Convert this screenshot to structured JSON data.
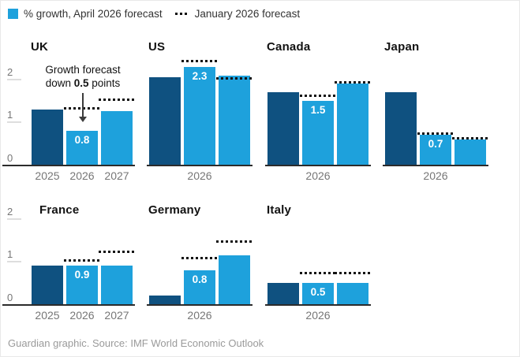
{
  "legend": {
    "april_label": "% growth, April 2026 forecast",
    "january_label": "January 2026 forecast"
  },
  "axis": {
    "y_tick_labels": [
      "2",
      "1",
      "0"
    ],
    "y_tick_values": [
      2,
      1,
      0
    ]
  },
  "annotation": {
    "line1": "Growth forecast",
    "line2_prefix": "down ",
    "line2_bold": "0.5",
    "line2_suffix": " points"
  },
  "footer": {
    "credit": "Guardian graphic. Source: IMF World Economic Outlook"
  },
  "colors": {
    "april_bar": "#1ea1dc",
    "bar_2025": "#0f5180",
    "january_dotted": "#111111",
    "axis_text": "#767676",
    "baseline": "#2b2b2b",
    "footer_text": "#9a9a9a"
  },
  "chart_data": {
    "type": "bar",
    "title": "% growth, April 2026 forecast vs January 2026 forecast",
    "categories": [
      "2025",
      "2026",
      "2027"
    ],
    "y_axis": {
      "ticks": [
        0,
        1,
        2
      ],
      "range": [
        0,
        2.4
      ],
      "gridlines": "tick stubs on left axis only"
    },
    "legend_position": "top-left",
    "panels": [
      {
        "country": "UK",
        "row": 1,
        "col": 0,
        "show_y_axis": true,
        "x_tick_labels": [
          "2025",
          "2026",
          "2027"
        ],
        "series": [
          {
            "name": "April 2026 forecast",
            "values": [
              1.3,
              0.8,
              1.25
            ]
          },
          {
            "name": "January 2026 forecast",
            "values": [
              null,
              1.3,
              1.5
            ]
          }
        ],
        "bar_value_label": "0.8",
        "has_annotation": true
      },
      {
        "country": "US",
        "row": 1,
        "col": 1,
        "show_y_axis": false,
        "x_tick_labels": [
          "",
          "2026",
          ""
        ],
        "series": [
          {
            "name": "April 2026 forecast",
            "values": [
              2.05,
              2.3,
              2.1
            ]
          },
          {
            "name": "January 2026 forecast",
            "values": [
              null,
              2.4,
              2.0
            ]
          }
        ],
        "bar_value_label": "2.3"
      },
      {
        "country": "Canada",
        "row": 1,
        "col": 2,
        "show_y_axis": false,
        "x_tick_labels": [
          "",
          "2026",
          ""
        ],
        "series": [
          {
            "name": "April 2026 forecast",
            "values": [
              1.7,
              1.5,
              1.9
            ]
          },
          {
            "name": "January 2026 forecast",
            "values": [
              null,
              1.6,
              1.9
            ]
          }
        ],
        "bar_value_label": "1.5"
      },
      {
        "country": "Japan",
        "row": 1,
        "col": 3,
        "show_y_axis": false,
        "x_tick_labels": [
          "",
          "2026",
          ""
        ],
        "series": [
          {
            "name": "April 2026 forecast",
            "values": [
              1.7,
              0.7,
              0.6
            ]
          },
          {
            "name": "January 2026 forecast",
            "values": [
              null,
              0.7,
              0.6
            ]
          }
        ],
        "bar_value_label": "0.7"
      },
      {
        "country": "France",
        "row": 2,
        "col": 0,
        "show_y_axis": true,
        "x_tick_labels": [
          "2025",
          "2026",
          "2027"
        ],
        "series": [
          {
            "name": "April 2026 forecast",
            "values": [
              0.9,
              0.9,
              0.9
            ]
          },
          {
            "name": "January 2026 forecast",
            "values": [
              null,
              1.0,
              1.2
            ]
          }
        ],
        "bar_value_label": "0.9"
      },
      {
        "country": "Germany",
        "row": 2,
        "col": 1,
        "show_y_axis": false,
        "x_tick_labels": [
          "",
          "2026",
          ""
        ],
        "series": [
          {
            "name": "April 2026 forecast",
            "values": [
              0.2,
              0.8,
              1.15
            ]
          },
          {
            "name": "January 2026 forecast",
            "values": [
              null,
              1.05,
              1.45
            ]
          }
        ],
        "bar_value_label": "0.8"
      },
      {
        "country": "Italy",
        "row": 2,
        "col": 2,
        "show_y_axis": false,
        "x_tick_labels": [
          "",
          "2026",
          ""
        ],
        "series": [
          {
            "name": "April 2026 forecast",
            "values": [
              0.5,
              0.5,
              0.5
            ]
          },
          {
            "name": "January 2026 forecast",
            "values": [
              null,
              0.7,
              0.7
            ]
          }
        ],
        "bar_value_label": "0.5"
      }
    ]
  }
}
